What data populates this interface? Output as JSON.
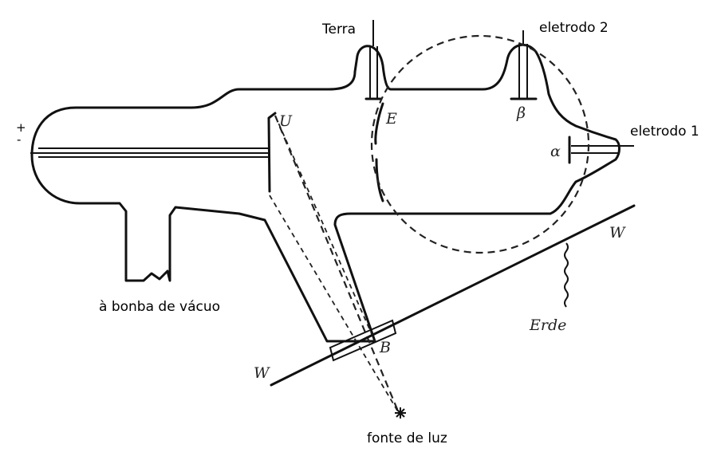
{
  "labels": {
    "terra": "Terra",
    "eletrodo_2": "eletrodo 2",
    "eletrodo_1": "eletrodo 1",
    "bomba": "à bonba de vácuo",
    "fonte": "fonte de luz",
    "plus": "+",
    "minus": "-"
  },
  "letters": {
    "U": "U",
    "E": "E",
    "beta": "β",
    "alpha": "α",
    "W_right": "W",
    "W_left": "W",
    "B": "B",
    "Erde": "Erde"
  }
}
